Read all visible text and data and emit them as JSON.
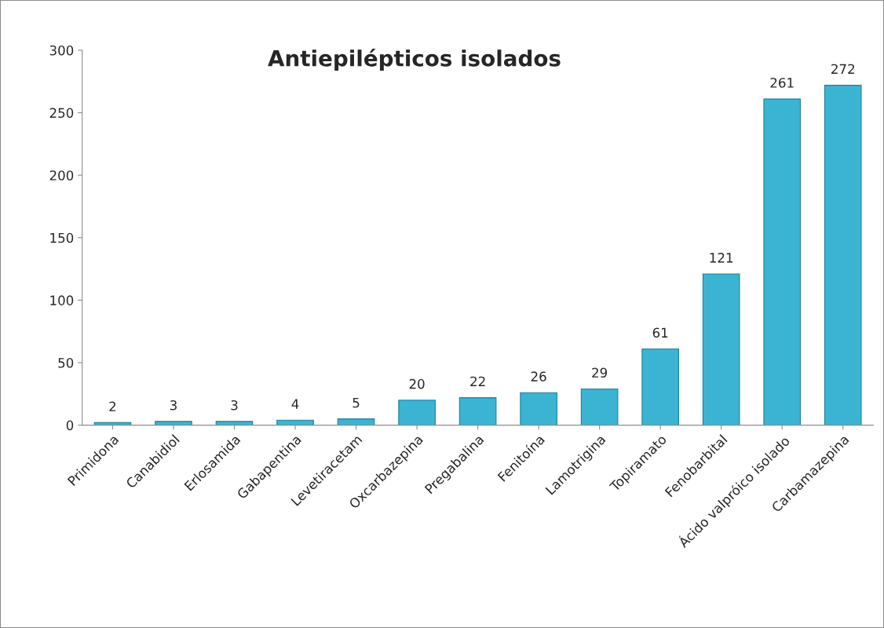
{
  "chart_data": {
    "type": "bar",
    "title": "Antiepilépticos isolados",
    "categories": [
      "Primidona",
      "Canabidiol",
      "Erlosamida",
      "Gabapentina",
      "Levetiracetam",
      "Oxcarbazepina",
      "Pregabalina",
      "Fenitoína",
      "Lamotrigina",
      "Topiramato",
      "Fenobarbital",
      "Ácido valpróico isolado",
      "Carbamazepina"
    ],
    "values": [
      2,
      3,
      3,
      4,
      5,
      20,
      22,
      26,
      29,
      61,
      121,
      261,
      272
    ],
    "color": "#3bb4d4",
    "ylim": [
      0,
      300
    ],
    "yticks": [
      0,
      50,
      100,
      150,
      200,
      250,
      300
    ],
    "data_labels": true,
    "grid": false,
    "legend": false
  }
}
